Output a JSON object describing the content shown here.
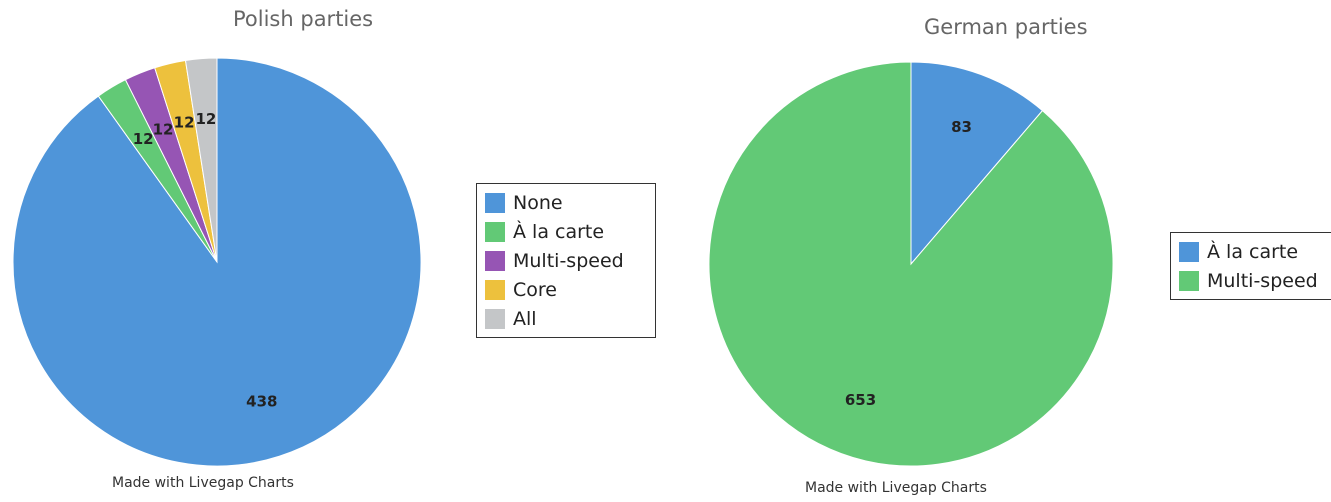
{
  "colors": {
    "blue": "#4f95d9",
    "green": "#62c976",
    "purple": "#9655b4",
    "yellow": "#edc13d",
    "gray": "#c4c6c8",
    "slice_border": "#ffffff"
  },
  "footer_text": "Made with Livegap Charts",
  "chart_data": [
    {
      "type": "pie",
      "title": "Polish parties",
      "categories": [
        "None",
        "À la carte",
        "Multi-speed",
        "Core",
        "All"
      ],
      "values": [
        438,
        12,
        12,
        12,
        12
      ],
      "colors": [
        "#4f95d9",
        "#62c976",
        "#9655b4",
        "#edc13d",
        "#c4c6c8"
      ],
      "start_angle": "12 o'clock",
      "direction": "clockwise",
      "legend_position": "right",
      "data_labels": true
    },
    {
      "type": "pie",
      "title": "German parties",
      "categories": [
        "À la carte",
        "Multi-speed"
      ],
      "values": [
        83,
        653
      ],
      "colors": [
        "#4f95d9",
        "#62c976"
      ],
      "start_angle": "12 o'clock",
      "direction": "clockwise",
      "legend_position": "right",
      "data_labels": true
    }
  ]
}
